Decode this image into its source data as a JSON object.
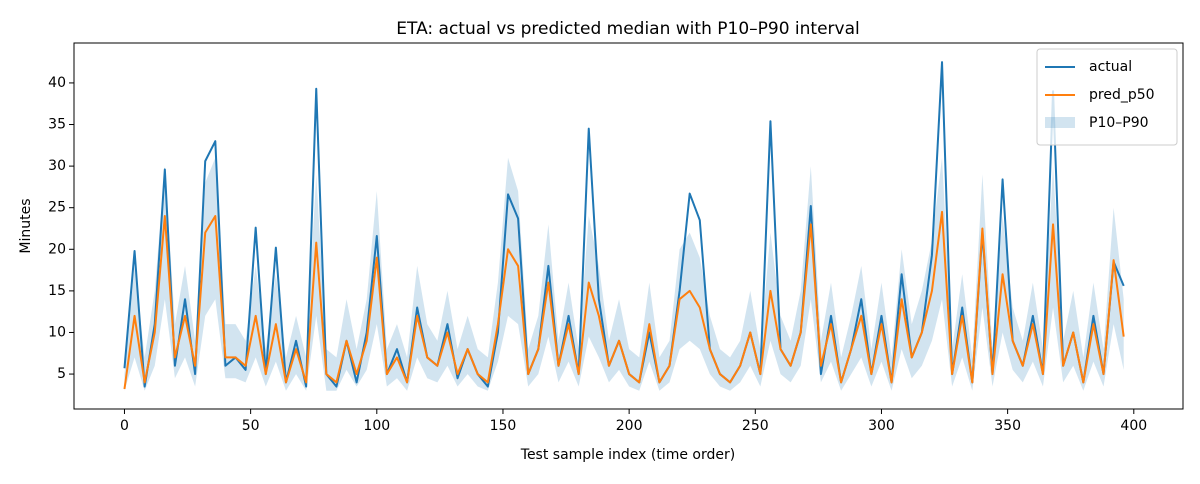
{
  "chart_data": {
    "type": "line",
    "title": "ETA: actual vs predicted median with P10–P90 interval",
    "x_label": "Test sample index (time order)",
    "y_label": "Minutes",
    "x": [
      0,
      4,
      8,
      12,
      16,
      20,
      24,
      28,
      32,
      36,
      40,
      44,
      48,
      52,
      56,
      60,
      64,
      68,
      72,
      76,
      80,
      84,
      88,
      92,
      96,
      100,
      104,
      108,
      112,
      116,
      120,
      124,
      128,
      132,
      136,
      140,
      144,
      148,
      152,
      156,
      160,
      164,
      168,
      172,
      176,
      180,
      184,
      188,
      192,
      196,
      200,
      204,
      208,
      212,
      216,
      220,
      224,
      228,
      232,
      236,
      240,
      244,
      248,
      252,
      256,
      260,
      264,
      268,
      272,
      276,
      280,
      284,
      288,
      292,
      296,
      300,
      304,
      308,
      312,
      316,
      320,
      324,
      328,
      332,
      336,
      340,
      344,
      348,
      352,
      356,
      360,
      364,
      368,
      372,
      376,
      380,
      384,
      388,
      392,
      396
    ],
    "series": [
      {
        "name": "actual",
        "color": "#1f77b4",
        "values": [
          5.7,
          19.8,
          3.5,
          11,
          29.6,
          6,
          14,
          5,
          30.6,
          33,
          6,
          7,
          5.5,
          22.6,
          5,
          20.2,
          4,
          9,
          3.5,
          39.3,
          5,
          3.5,
          9,
          4,
          10,
          21.6,
          5,
          8,
          4,
          13,
          7,
          6,
          11,
          4.5,
          8,
          5,
          3.5,
          10,
          26.6,
          23.7,
          5,
          8,
          18,
          6,
          12,
          5,
          34.5,
          14,
          6,
          9,
          5,
          4,
          10,
          4,
          6,
          15,
          26.7,
          23.5,
          8,
          5,
          4,
          6,
          10,
          5,
          35.4,
          8,
          6,
          10,
          25.2,
          5,
          12,
          4,
          8,
          14,
          5,
          12,
          4,
          17,
          7,
          10,
          19.3,
          42.5,
          5,
          13,
          4,
          22,
          5,
          28.4,
          9,
          6,
          12,
          5,
          39,
          6,
          10,
          4,
          12,
          5,
          18.5,
          15.6
        ]
      },
      {
        "name": "pred_p50",
        "color": "#ff7f0e",
        "values": [
          3.2,
          12,
          4,
          10,
          24,
          7,
          12,
          6,
          22,
          24,
          7,
          7,
          6,
          12,
          5,
          11,
          4,
          8,
          4,
          20.8,
          5,
          4,
          9,
          5,
          9,
          19,
          5,
          7,
          4,
          12,
          7,
          6,
          10,
          5,
          8,
          5,
          4,
          11,
          20,
          18,
          5,
          8,
          16,
          6,
          11,
          5,
          16,
          12,
          6,
          9,
          5,
          4,
          11,
          4,
          6,
          14,
          15,
          13,
          8,
          5,
          4,
          6,
          10,
          5,
          15,
          8,
          6,
          10,
          23,
          6,
          11,
          4,
          8,
          12,
          5,
          11,
          4,
          14,
          7,
          10,
          15,
          24.5,
          5,
          12,
          4,
          22.5,
          5,
          17,
          9,
          6,
          11,
          5,
          23,
          6,
          10,
          4,
          11,
          5,
          18.7,
          9.5
        ]
      }
    ],
    "band": {
      "name": "P10–P90",
      "color": "#1f77b4",
      "lower": [
        3,
        7,
        3,
        6,
        14,
        4.5,
        7,
        3.5,
        12,
        14,
        4.5,
        4.5,
        4,
        7,
        3.5,
        6.5,
        3,
        5,
        3,
        12,
        3,
        3,
        5.5,
        3.5,
        5.5,
        11,
        3.5,
        4.5,
        3,
        7,
        4.5,
        4,
        6,
        3.5,
        5,
        3.5,
        3,
        6.5,
        12,
        11,
        3.5,
        5,
        9.5,
        4,
        6.5,
        3.5,
        9.5,
        7,
        4,
        5.5,
        3.5,
        3,
        6.5,
        3,
        4,
        8,
        9,
        8,
        5,
        3.5,
        3,
        4,
        6,
        3.5,
        9,
        5,
        4,
        6,
        14,
        4,
        6.5,
        3,
        5,
        7,
        3.5,
        6.5,
        3,
        8,
        4.5,
        6,
        9,
        14,
        3.5,
        7,
        3,
        13,
        3.5,
        10,
        5.5,
        4,
        6.5,
        3.5,
        13,
        4,
        6,
        3,
        6.5,
        3.5,
        11,
        5.5
      ],
      "upper": [
        5,
        18,
        7,
        15,
        30,
        11,
        18,
        9,
        28,
        31,
        11,
        11,
        9,
        18,
        8,
        17,
        7,
        12,
        7,
        29,
        8,
        7,
        14,
        8,
        14,
        27,
        8,
        11,
        7,
        18,
        11,
        9,
        15,
        8,
        12,
        8,
        7,
        16,
        31,
        27,
        8,
        12,
        23,
        9,
        16,
        8,
        24,
        18,
        9,
        14,
        8,
        7,
        16,
        7,
        9,
        20,
        22,
        19,
        12,
        8,
        7,
        9,
        15,
        8,
        22,
        12,
        9,
        15,
        30,
        9,
        16,
        7,
        12,
        18,
        8,
        16,
        7,
        20,
        11,
        15,
        21,
        31,
        8,
        17,
        7,
        29,
        8,
        24,
        13,
        9,
        16,
        8,
        30,
        9,
        15,
        7,
        16,
        8,
        25,
        14
      ]
    },
    "xlim": [
      -20,
      419.5
    ],
    "ylim": [
      0.8,
      44.8
    ],
    "xticks": [
      0,
      50,
      100,
      150,
      200,
      250,
      300,
      350,
      400
    ],
    "yticks": [
      5,
      10,
      15,
      20,
      25,
      30,
      35,
      40
    ],
    "legend": "upper right"
  }
}
